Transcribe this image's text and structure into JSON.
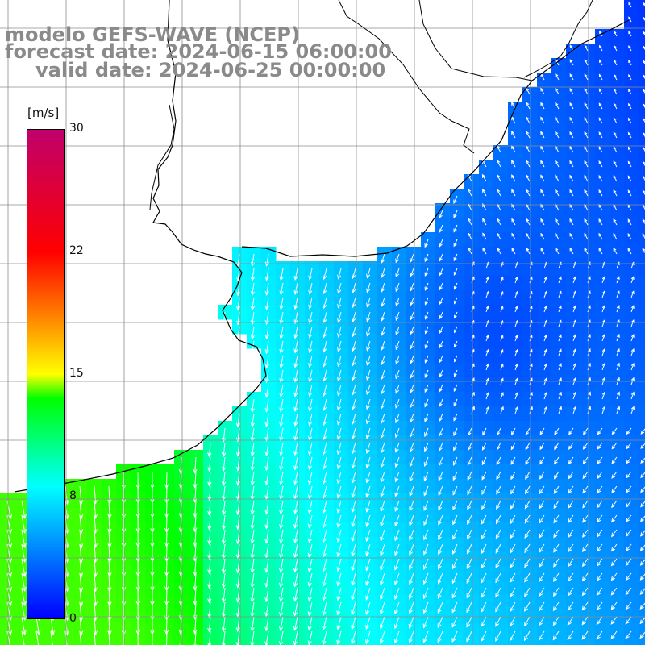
{
  "titles": {
    "line1": "modelo GEFS-WAVE (NCEP)",
    "line2": "forecast date: 2024-06-15 06:00:00",
    "line3": "valid date: 2024-06-25 00:00:00"
  },
  "colorbar": {
    "unit": "[m/s]",
    "labels": [
      "30",
      "22",
      "15",
      "8",
      "0"
    ],
    "values": [
      30,
      22,
      15,
      8,
      0
    ],
    "colors": [
      "#0000ff",
      "#00ffff",
      "#00ff00",
      "#ffff00",
      "#ff8000",
      "#ff0000",
      "#c0006c"
    ]
  },
  "map": {
    "land_color": "#ffffff",
    "grid_color": "#8c8c8c",
    "coast_color": "#000000",
    "arrow_color": "#ffffff",
    "grid": true
  }
}
